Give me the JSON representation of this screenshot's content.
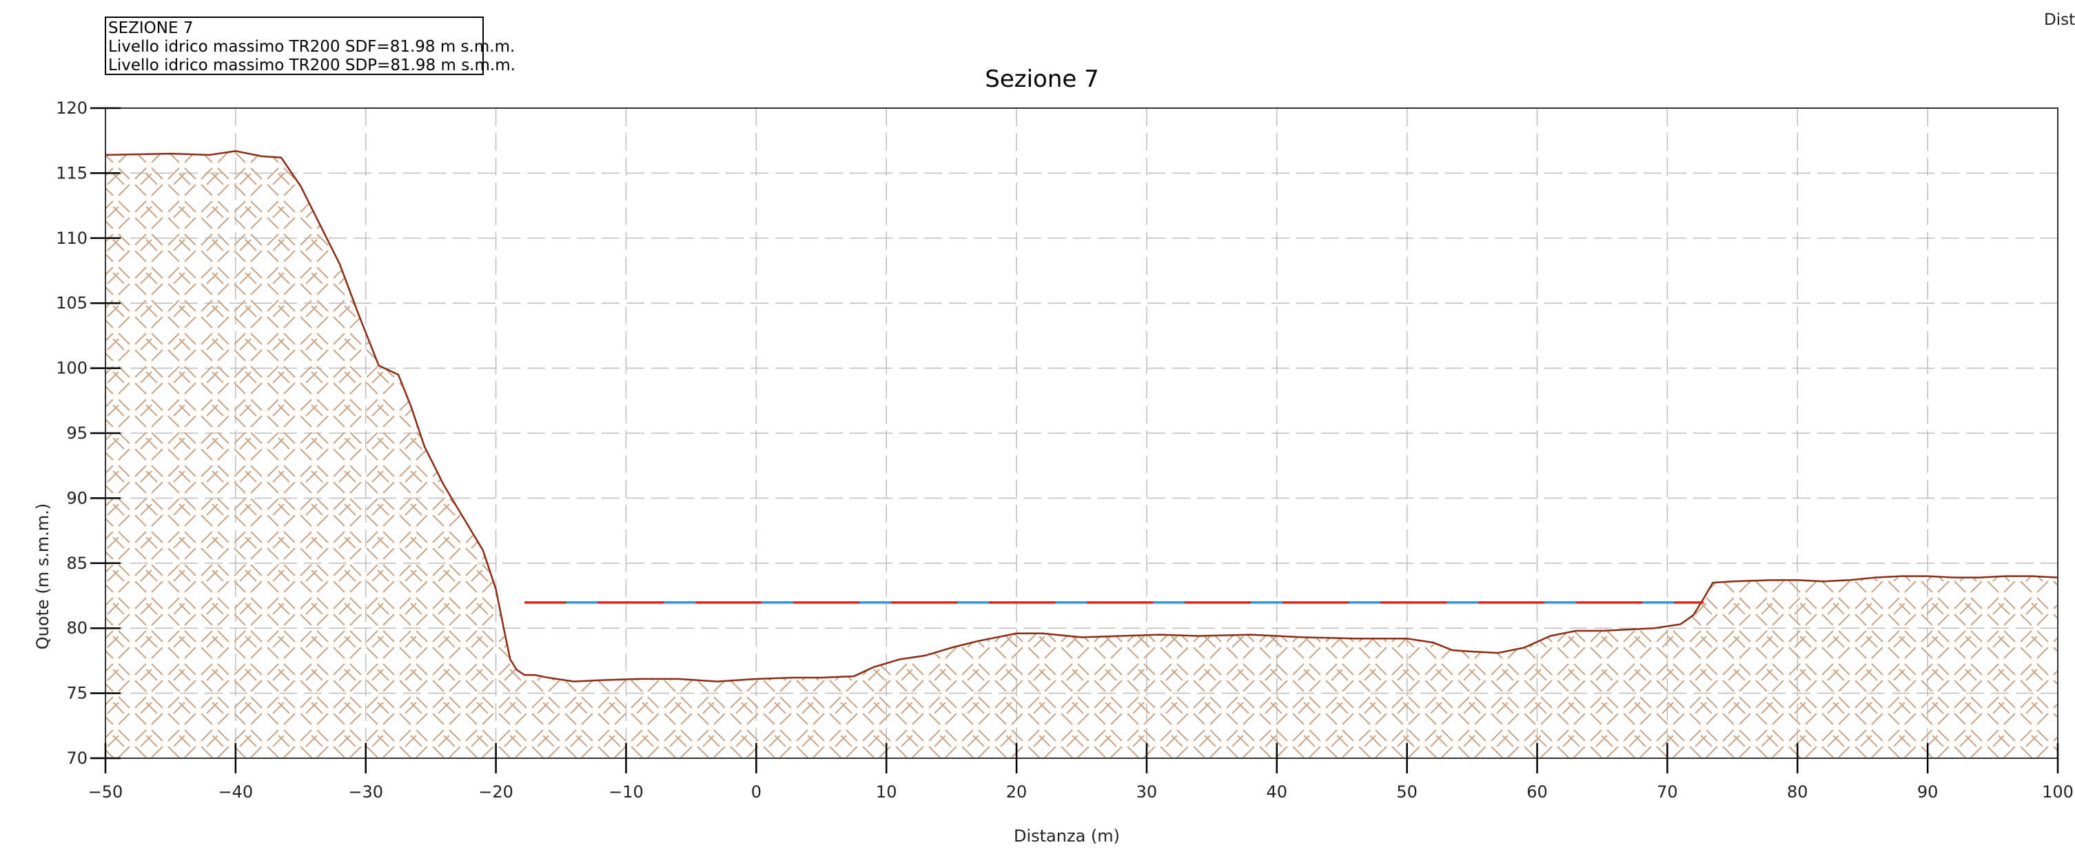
{
  "info_box": {
    "lines": [
      "SEZIONE 7",
      "Livello idrico massimo TR200 SDF=81.98 m s.m.m.",
      "Livello idrico massimo TR200 SDP=81.98 m s.m.m."
    ]
  },
  "corner_label": "Dista",
  "colors": {
    "terrain_line": "#8b2a12",
    "terrain_hatch": "#c9a584",
    "water_sdf": "#e0201a",
    "water_sdp": "#2f9be0",
    "grid": "#bdbdbd",
    "axis": "#333333"
  },
  "chart_data": {
    "type": "area",
    "title": "Sezione 7",
    "xlabel": "Distanza (m)",
    "ylabel": "Quote (m s.m.m.)",
    "xlim": [
      -50,
      100
    ],
    "ylim": [
      70,
      120
    ],
    "x_ticks": [
      -50,
      -40,
      -30,
      -20,
      -10,
      0,
      10,
      20,
      30,
      40,
      50,
      60,
      70,
      80,
      90,
      100
    ],
    "y_ticks": [
      70,
      75,
      80,
      85,
      90,
      95,
      100,
      105,
      110,
      115,
      120
    ],
    "grid": true,
    "series": [
      {
        "kind": "terrain",
        "x": [
          -50,
          -45,
          -42,
          -40,
          -38,
          -36.5,
          -35,
          -33.5,
          -32,
          -30.5,
          -29,
          -27.5,
          -26.5,
          -25.5,
          -24,
          -22.5,
          -21,
          -20,
          -19.4,
          -18.9,
          -18.4,
          -17.8,
          -17,
          -16,
          -14,
          -12,
          -9,
          -6,
          -3,
          0,
          3,
          5,
          7.5,
          9,
          11,
          13,
          15,
          17,
          20,
          22,
          25,
          28,
          31,
          34,
          38,
          42,
          46,
          50,
          52,
          53.5,
          55,
          57,
          59,
          61,
          63,
          65,
          67,
          69,
          71,
          72,
          72.8,
          73.5,
          75,
          78,
          80,
          82,
          84,
          86,
          88,
          90,
          92,
          94,
          96,
          98,
          100
        ],
        "y": [
          116.4,
          116.5,
          116.4,
          116.7,
          116.3,
          116.2,
          114,
          111,
          108,
          104,
          100.2,
          99.5,
          97,
          94,
          91,
          88.5,
          86,
          83,
          80,
          77.6,
          76.8,
          76.4,
          76.4,
          76.2,
          75.9,
          76,
          76.1,
          76.1,
          75.9,
          76.1,
          76.2,
          76.2,
          76.3,
          77,
          77.6,
          77.9,
          78.5,
          79,
          79.6,
          79.6,
          79.3,
          79.4,
          79.5,
          79.4,
          79.5,
          79.3,
          79.2,
          79.2,
          78.9,
          78.3,
          78.2,
          78.1,
          78.5,
          79.4,
          79.8,
          79.8,
          79.9,
          80,
          80.3,
          81,
          82.3,
          83.5,
          83.6,
          83.7,
          83.7,
          83.6,
          83.7,
          83.9,
          84,
          84,
          83.9,
          83.9,
          84,
          84,
          83.9
        ]
      },
      {
        "kind": "water",
        "name": "SDF",
        "x": [
          -17.8,
          72.8
        ],
        "y": [
          81.98,
          81.98
        ]
      },
      {
        "kind": "water",
        "name": "SDP",
        "x": [
          -17.8,
          72.8
        ],
        "y": [
          81.98,
          81.98
        ]
      }
    ]
  }
}
